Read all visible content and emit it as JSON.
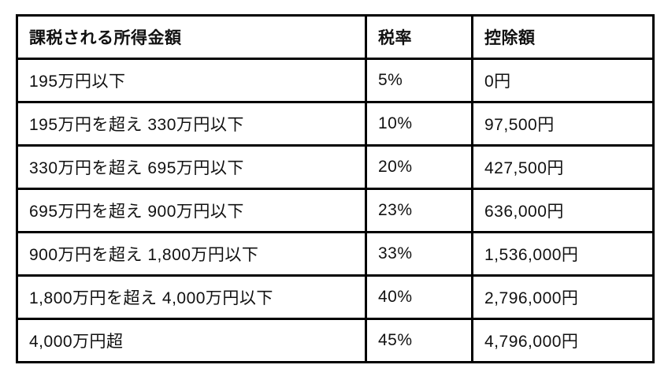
{
  "table": {
    "title": "income-tax-bracket-table",
    "columns": {
      "income": "課税される所得金額",
      "rate": "税率",
      "deduction": "控除額"
    },
    "rows": [
      {
        "income": "195万円以下",
        "rate": "5%",
        "deduction": "0円"
      },
      {
        "income": "195万円を超え 330万円以下",
        "rate": "10%",
        "deduction": "97,500円"
      },
      {
        "income": "330万円を超え 695万円以下",
        "rate": "20%",
        "deduction": "427,500円"
      },
      {
        "income": "695万円を超え 900万円以下",
        "rate": "23%",
        "deduction": "636,000円"
      },
      {
        "income": "900万円を超え 1,800万円以下",
        "rate": "33%",
        "deduction": "1,536,000円"
      },
      {
        "income": "1,800万円を超え 4,000万円以下",
        "rate": "40%",
        "deduction": "2,796,000円"
      },
      {
        "income": "4,000万円超",
        "rate": "45%",
        "deduction": "4,796,000円"
      }
    ],
    "colors": {
      "border": "#000000",
      "text": "#111111",
      "background": "#ffffff"
    }
  }
}
